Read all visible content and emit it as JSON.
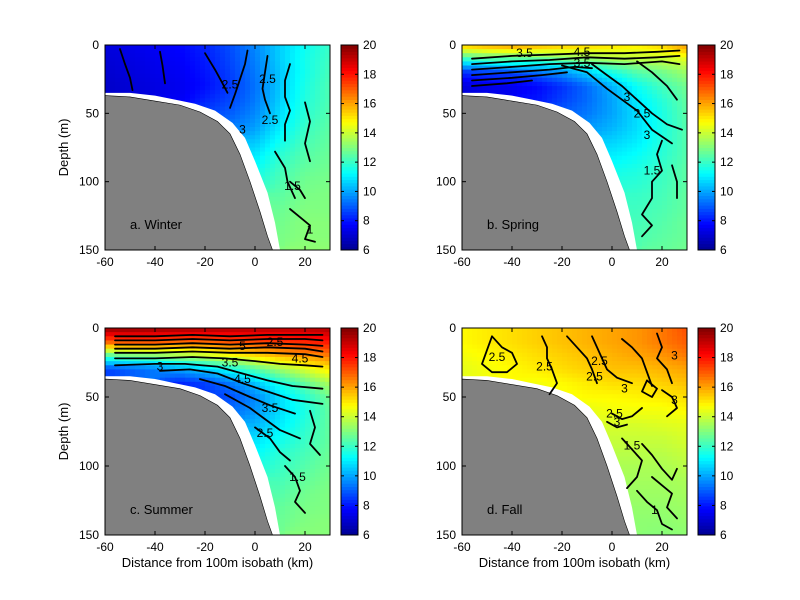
{
  "figure": {
    "shared_ylabel": "Depth (m)",
    "shared_xlabel": "Distance from 100m isobath (km)"
  },
  "colors": {
    "land": "#808080",
    "contour": "#000000",
    "colormap": [
      "#00008f",
      "#0000ff",
      "#0080ff",
      "#00ffff",
      "#80ff80",
      "#ffff00",
      "#ff8000",
      "#ff0000",
      "#800000"
    ]
  },
  "chart_data": [
    {
      "type": "heatmap",
      "panel_label": "a. Winter",
      "xlabel": "",
      "ylabel": "Depth (m)",
      "xlim": [
        -60,
        30
      ],
      "ylim": [
        150,
        0
      ],
      "y_reversed": true,
      "xticks": [
        "-60",
        "-40",
        "-20",
        "0",
        "20"
      ],
      "yticks": [
        "0",
        "50",
        "100",
        "150"
      ],
      "colorbar": {
        "range": [
          6,
          20
        ],
        "ticks": [
          "6",
          "8",
          "10",
          "12",
          "14",
          "16",
          "18",
          "20"
        ]
      },
      "color_field_note": "temperature colour field",
      "field_x": [
        -60,
        -50,
        -40,
        -30,
        -20,
        -10,
        0,
        10,
        20,
        30
      ],
      "field_depth": [
        0,
        10,
        20,
        30,
        40,
        50,
        60,
        70,
        80,
        90,
        100,
        110,
        120,
        130,
        140,
        150
      ],
      "field": [
        [
          7.2,
          7.4,
          7.6,
          7.8,
          8.2,
          8.8,
          9.6,
          10.6,
          11.4,
          12.0
        ],
        [
          7.1,
          7.3,
          7.5,
          7.7,
          8.1,
          8.7,
          9.5,
          10.6,
          11.5,
          12.1
        ],
        [
          7.0,
          7.2,
          7.4,
          7.6,
          8.0,
          8.6,
          9.4,
          10.5,
          11.5,
          12.2
        ],
        [
          6.9,
          7.1,
          7.3,
          7.5,
          7.9,
          8.5,
          9.3,
          10.5,
          11.6,
          12.3
        ],
        [
          null,
          null,
          null,
          7.6,
          8.2,
          8.7,
          9.4,
          10.6,
          11.7,
          12.3
        ],
        [
          null,
          null,
          null,
          null,
          8.6,
          9.0,
          9.6,
          10.8,
          11.8,
          12.4
        ],
        [
          null,
          null,
          null,
          null,
          null,
          9.4,
          9.9,
          11.0,
          12.0,
          12.5
        ],
        [
          null,
          null,
          null,
          null,
          null,
          null,
          10.4,
          11.4,
          12.2,
          12.6
        ],
        [
          null,
          null,
          null,
          null,
          null,
          null,
          10.9,
          11.8,
          12.4,
          12.7
        ],
        [
          null,
          null,
          null,
          null,
          null,
          null,
          11.3,
          12.1,
          12.6,
          12.8
        ],
        [
          null,
          null,
          null,
          null,
          null,
          null,
          11.7,
          12.3,
          12.8,
          12.9
        ],
        [
          null,
          null,
          null,
          null,
          null,
          null,
          null,
          12.5,
          12.9,
          13.0
        ],
        [
          null,
          null,
          null,
          null,
          null,
          null,
          null,
          12.7,
          13.0,
          13.0
        ],
        [
          null,
          null,
          null,
          null,
          null,
          null,
          null,
          12.8,
          13.1,
          13.1
        ],
        [
          null,
          null,
          null,
          null,
          null,
          null,
          null,
          12.9,
          13.1,
          13.1
        ],
        [
          null,
          null,
          null,
          null,
          null,
          null,
          null,
          null,
          13.2,
          13.2
        ]
      ],
      "contour_labels": [
        {
          "text": "2.5",
          "x": -10,
          "depth": 29
        },
        {
          "text": "2.5",
          "x": 5,
          "depth": 25
        },
        {
          "text": "2.5",
          "x": 6,
          "depth": 55
        },
        {
          "text": "1.5",
          "x": 15,
          "depth": 103
        },
        {
          "text": "1",
          "x": 22,
          "depth": 135
        },
        {
          "text": "3",
          "x": -5,
          "depth": 62
        }
      ]
    },
    {
      "type": "heatmap",
      "panel_label": "b. Spring",
      "xlabel": "",
      "ylabel": "",
      "xlim": [
        -60,
        30
      ],
      "ylim": [
        150,
        0
      ],
      "y_reversed": true,
      "xticks": [
        "-60",
        "-40",
        "-20",
        "0",
        "20"
      ],
      "yticks": [
        "0",
        "50",
        "100",
        "150"
      ],
      "colorbar": {
        "range": [
          6,
          20
        ],
        "ticks": [
          "6",
          "8",
          "10",
          "12",
          "14",
          "16",
          "18",
          "20"
        ]
      },
      "color_field_note": "temperature colour field",
      "field_x": [
        -60,
        -50,
        -40,
        -30,
        -20,
        -10,
        0,
        10,
        20,
        30
      ],
      "field_depth": [
        0,
        10,
        20,
        30,
        40,
        50,
        60,
        70,
        80,
        90,
        100,
        110,
        120,
        130,
        140,
        150
      ],
      "field": [
        [
          15.6,
          16.0,
          16.2,
          15.9,
          15.6,
          15.4,
          15.2,
          15.0,
          15.4,
          16.2
        ],
        [
          12.0,
          12.4,
          12.6,
          12.7,
          12.9,
          13.2,
          13.6,
          13.8,
          14.0,
          14.4
        ],
        [
          8.4,
          8.6,
          8.8,
          9.2,
          9.8,
          10.6,
          11.6,
          12.4,
          12.8,
          13.4
        ],
        [
          7.2,
          7.4,
          7.5,
          7.8,
          8.4,
          9.2,
          10.2,
          11.4,
          12.2,
          12.8
        ],
        [
          null,
          null,
          null,
          8.0,
          8.6,
          9.2,
          10.0,
          11.0,
          11.8,
          12.6
        ],
        [
          null,
          null,
          null,
          null,
          9.0,
          9.4,
          10.0,
          10.8,
          11.6,
          12.5
        ],
        [
          null,
          null,
          null,
          null,
          null,
          9.8,
          10.2,
          10.8,
          11.6,
          12.4
        ],
        [
          null,
          null,
          null,
          null,
          null,
          null,
          10.6,
          11.0,
          11.7,
          12.4
        ],
        [
          null,
          null,
          null,
          null,
          null,
          null,
          11.0,
          11.3,
          11.8,
          12.4
        ],
        [
          null,
          null,
          null,
          null,
          null,
          null,
          11.4,
          11.6,
          12.0,
          12.5
        ],
        [
          null,
          null,
          null,
          null,
          null,
          null,
          11.7,
          11.8,
          12.1,
          12.5
        ],
        [
          null,
          null,
          null,
          null,
          null,
          null,
          null,
          12.0,
          12.2,
          12.6
        ],
        [
          null,
          null,
          null,
          null,
          null,
          null,
          null,
          12.1,
          12.3,
          12.6
        ],
        [
          null,
          null,
          null,
          null,
          null,
          null,
          null,
          12.2,
          12.4,
          12.7
        ],
        [
          null,
          null,
          null,
          null,
          null,
          null,
          null,
          12.3,
          12.5,
          12.7
        ],
        [
          null,
          null,
          null,
          null,
          null,
          null,
          null,
          null,
          12.6,
          12.8
        ]
      ],
      "contour_labels": [
        {
          "text": "3.5",
          "x": -35,
          "depth": 6
        },
        {
          "text": "4.5",
          "x": -12,
          "depth": 5
        },
        {
          "text": "3.5",
          "x": -12,
          "depth": 13
        },
        {
          "text": "3",
          "x": 6,
          "depth": 38
        },
        {
          "text": "2.5",
          "x": 12,
          "depth": 50
        },
        {
          "text": "3",
          "x": 14,
          "depth": 66
        },
        {
          "text": "1.5",
          "x": 16,
          "depth": 92
        }
      ]
    },
    {
      "type": "heatmap",
      "panel_label": "c. Summer",
      "xlabel": "Distance from 100m isobath (km)",
      "ylabel": "Depth (m)",
      "xlim": [
        -60,
        30
      ],
      "ylim": [
        150,
        0
      ],
      "y_reversed": true,
      "xticks": [
        "-60",
        "-40",
        "-20",
        "0",
        "20"
      ],
      "yticks": [
        "0",
        "50",
        "100",
        "150"
      ],
      "colorbar": {
        "range": [
          6,
          20
        ],
        "ticks": [
          "6",
          "8",
          "10",
          "12",
          "14",
          "16",
          "18",
          "20"
        ]
      },
      "color_field_note": "temperature colour field",
      "field_x": [
        -60,
        -50,
        -40,
        -30,
        -20,
        -10,
        0,
        10,
        20,
        30
      ],
      "field_depth": [
        0,
        10,
        20,
        30,
        40,
        50,
        60,
        70,
        80,
        90,
        100,
        110,
        120,
        130,
        140,
        150
      ],
      "field": [
        [
          19.8,
          19.8,
          19.7,
          19.6,
          19.5,
          19.4,
          19.3,
          19.2,
          19.2,
          19.4
        ],
        [
          17.0,
          17.2,
          17.2,
          17.0,
          17.0,
          17.2,
          17.4,
          17.6,
          17.8,
          18.0
        ],
        [
          12.4,
          12.8,
          13.0,
          13.6,
          14.0,
          14.6,
          15.2,
          15.8,
          16.2,
          16.6
        ],
        [
          8.6,
          9.0,
          9.4,
          10.0,
          10.6,
          11.4,
          12.4,
          13.4,
          14.2,
          15.0
        ],
        [
          null,
          null,
          null,
          8.2,
          8.6,
          9.4,
          10.4,
          11.6,
          12.6,
          13.6
        ],
        [
          null,
          null,
          null,
          null,
          8.4,
          8.8,
          9.6,
          10.8,
          11.8,
          12.8
        ],
        [
          null,
          null,
          null,
          null,
          null,
          9.2,
          9.8,
          10.8,
          11.6,
          12.6
        ],
        [
          null,
          null,
          null,
          null,
          null,
          null,
          10.2,
          11.0,
          11.8,
          12.6
        ],
        [
          null,
          null,
          null,
          null,
          null,
          null,
          10.8,
          11.4,
          12.0,
          12.6
        ],
        [
          null,
          null,
          null,
          null,
          null,
          null,
          11.2,
          11.8,
          12.2,
          12.7
        ],
        [
          null,
          null,
          null,
          null,
          null,
          null,
          11.6,
          12.0,
          12.4,
          12.8
        ],
        [
          null,
          null,
          null,
          null,
          null,
          null,
          null,
          12.2,
          12.6,
          12.9
        ],
        [
          null,
          null,
          null,
          null,
          null,
          null,
          null,
          12.4,
          12.8,
          13.0
        ],
        [
          null,
          null,
          null,
          null,
          null,
          null,
          null,
          12.6,
          12.9,
          13.0
        ],
        [
          null,
          null,
          null,
          null,
          null,
          null,
          null,
          12.7,
          13.0,
          13.1
        ],
        [
          null,
          null,
          null,
          null,
          null,
          null,
          null,
          null,
          13.1,
          13.1
        ]
      ],
      "contour_labels": [
        {
          "text": "3",
          "x": -38,
          "depth": 28
        },
        {
          "text": "3.5",
          "x": -10,
          "depth": 25
        },
        {
          "text": "4.5",
          "x": -5,
          "depth": 37
        },
        {
          "text": "3.5",
          "x": 6,
          "depth": 58
        },
        {
          "text": "2.5",
          "x": 4,
          "depth": 76
        },
        {
          "text": "1.5",
          "x": 17,
          "depth": 108
        },
        {
          "text": "2.5",
          "x": 8,
          "depth": 10
        },
        {
          "text": "4.5",
          "x": 18,
          "depth": 22
        },
        {
          "text": "5",
          "x": -5,
          "depth": 13
        }
      ]
    },
    {
      "type": "heatmap",
      "panel_label": "d. Fall",
      "xlabel": "Distance from 100m isobath (km)",
      "ylabel": "",
      "xlim": [
        -60,
        30
      ],
      "ylim": [
        150,
        0
      ],
      "y_reversed": true,
      "xticks": [
        "-60",
        "-40",
        "-20",
        "0",
        "20"
      ],
      "yticks": [
        "0",
        "50",
        "100",
        "150"
      ],
      "colorbar": {
        "range": [
          6,
          20
        ],
        "ticks": [
          "6",
          "8",
          "10",
          "12",
          "14",
          "16",
          "18",
          "20"
        ]
      },
      "color_field_note": "temperature colour field",
      "field_x": [
        -60,
        -50,
        -40,
        -30,
        -20,
        -10,
        0,
        10,
        20,
        30
      ],
      "field_depth": [
        0,
        10,
        20,
        30,
        40,
        50,
        60,
        70,
        80,
        90,
        100,
        110,
        120,
        130,
        140,
        150
      ],
      "field": [
        [
          14.8,
          15.0,
          15.2,
          15.4,
          15.6,
          15.8,
          16.0,
          16.2,
          16.6,
          17.2
        ],
        [
          14.8,
          15.0,
          15.2,
          15.4,
          15.6,
          15.8,
          16.0,
          16.2,
          16.6,
          17.0
        ],
        [
          14.6,
          14.8,
          15.0,
          15.2,
          15.4,
          15.6,
          15.8,
          16.0,
          16.2,
          16.6
        ],
        [
          14.4,
          14.6,
          14.8,
          15.0,
          15.2,
          15.4,
          15.6,
          15.6,
          15.8,
          16.0
        ],
        [
          null,
          null,
          null,
          14.6,
          14.8,
          15.0,
          15.2,
          15.2,
          15.4,
          15.6
        ],
        [
          null,
          null,
          null,
          null,
          14.6,
          14.8,
          14.8,
          14.9,
          15.0,
          15.2
        ],
        [
          null,
          null,
          null,
          null,
          null,
          14.4,
          14.6,
          14.6,
          14.6,
          14.8
        ],
        [
          null,
          null,
          null,
          null,
          null,
          null,
          14.2,
          14.2,
          14.3,
          14.4
        ],
        [
          null,
          null,
          null,
          null,
          null,
          null,
          14.0,
          14.0,
          14.0,
          14.2
        ],
        [
          null,
          null,
          null,
          null,
          null,
          null,
          13.8,
          13.8,
          13.8,
          14.0
        ],
        [
          null,
          null,
          null,
          null,
          null,
          null,
          13.6,
          13.6,
          13.6,
          13.8
        ],
        [
          null,
          null,
          null,
          null,
          null,
          null,
          null,
          13.5,
          13.5,
          13.6
        ],
        [
          null,
          null,
          null,
          null,
          null,
          null,
          null,
          13.4,
          13.4,
          13.5
        ],
        [
          null,
          null,
          null,
          null,
          null,
          null,
          null,
          13.3,
          13.3,
          13.4
        ],
        [
          null,
          null,
          null,
          null,
          null,
          null,
          null,
          13.2,
          13.2,
          13.3
        ],
        [
          null,
          null,
          null,
          null,
          null,
          null,
          null,
          null,
          13.1,
          13.2
        ]
      ],
      "contour_labels": [
        {
          "text": "2.5",
          "x": -46,
          "depth": 21
        },
        {
          "text": "2.5",
          "x": -27,
          "depth": 28
        },
        {
          "text": "2.5",
          "x": -7,
          "depth": 35
        },
        {
          "text": "2.5",
          "x": -5,
          "depth": 24
        },
        {
          "text": "3",
          "x": 5,
          "depth": 44
        },
        {
          "text": "2.5",
          "x": 1,
          "depth": 62
        },
        {
          "text": "3",
          "x": 2,
          "depth": 68
        },
        {
          "text": "1.5",
          "x": 8,
          "depth": 85
        },
        {
          "text": "3",
          "x": 25,
          "depth": 52
        },
        {
          "text": "3",
          "x": 25,
          "depth": 20
        },
        {
          "text": "1",
          "x": 17,
          "depth": 132
        }
      ]
    }
  ]
}
